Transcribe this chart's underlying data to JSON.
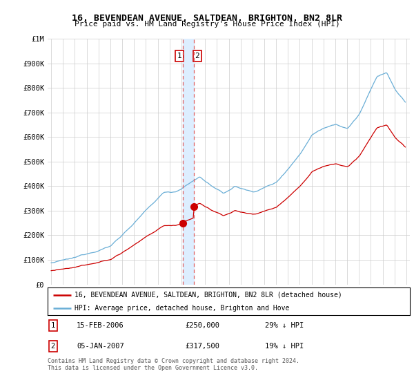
{
  "title": "16, BEVENDEAN AVENUE, SALTDEAN, BRIGHTON, BN2 8LR",
  "subtitle": "Price paid vs. HM Land Registry's House Price Index (HPI)",
  "hpi_label": "HPI: Average price, detached house, Brighton and Hove",
  "property_label": "16, BEVENDEAN AVENUE, SALTDEAN, BRIGHTON, BN2 8LR (detached house)",
  "transaction1_date": "15-FEB-2006",
  "transaction1_price": "£250,000",
  "transaction1_hpi": "29% ↓ HPI",
  "transaction2_date": "05-JAN-2007",
  "transaction2_price": "£317,500",
  "transaction2_hpi": "19% ↓ HPI",
  "footer": "Contains HM Land Registry data © Crown copyright and database right 2024.\nThis data is licensed under the Open Government Licence v3.0.",
  "hpi_color": "#6aaed6",
  "property_color": "#cc0000",
  "vline_color": "#e06060",
  "shade_color": "#ddeeff",
  "marker_color": "#cc0000",
  "background_color": "#ffffff",
  "grid_color": "#cccccc",
  "ylim": [
    0,
    1000000
  ],
  "xlim_start": 1994.7,
  "xlim_end": 2025.3,
  "t1": 2006.12,
  "t2": 2007.04,
  "price_t1": 250000,
  "price_t2": 317500
}
